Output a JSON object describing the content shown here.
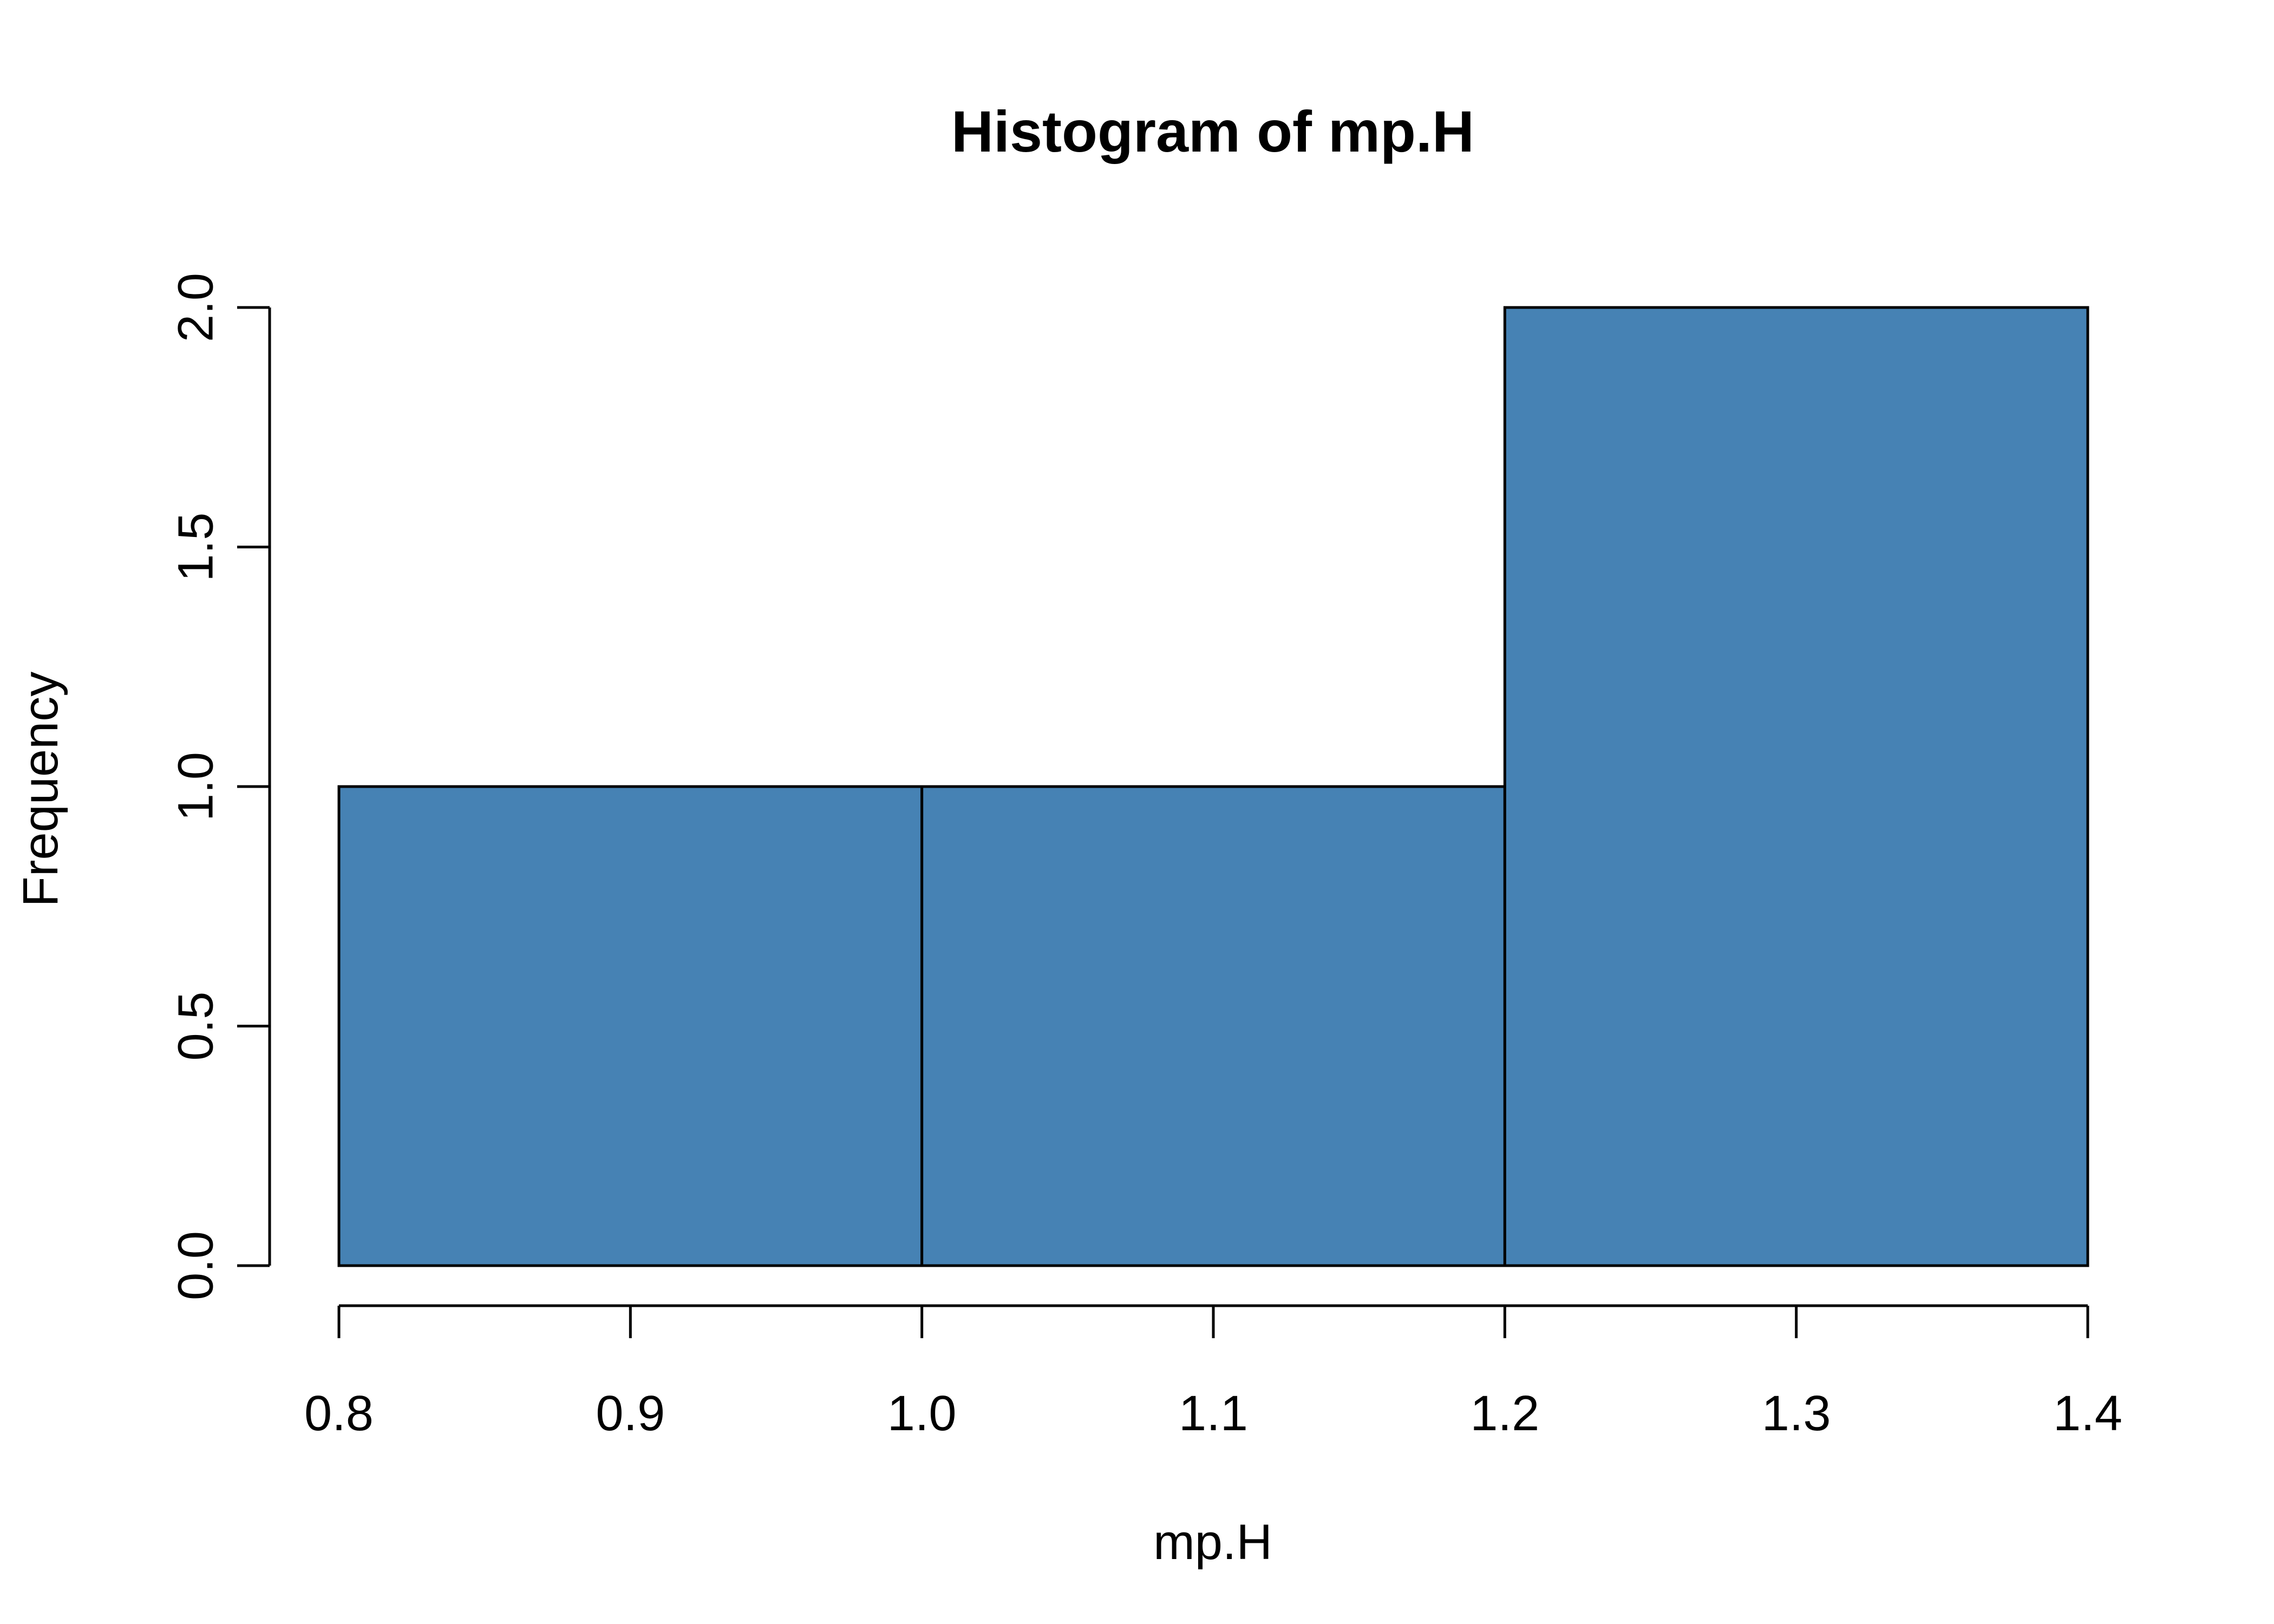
{
  "chart_data": {
    "type": "bar",
    "title": "Histogram of mp.H",
    "xlabel": "mp.H",
    "ylabel": "Frequency",
    "bins": [
      {
        "start": 0.8,
        "end": 1.0,
        "count": 1
      },
      {
        "start": 1.0,
        "end": 1.2,
        "count": 1
      },
      {
        "start": 1.2,
        "end": 1.4,
        "count": 2
      }
    ],
    "xlim": [
      0.8,
      1.4
    ],
    "ylim": [
      0,
      2
    ],
    "x_ticks": [
      "0.8",
      "0.9",
      "1.0",
      "1.1",
      "1.2",
      "1.3",
      "1.4"
    ],
    "y_ticks": [
      "0.0",
      "0.5",
      "1.0",
      "1.5",
      "2.0"
    ],
    "grid": false,
    "legend": "none",
    "bar_color": "#4682b4",
    "edge_color": "#000000"
  }
}
